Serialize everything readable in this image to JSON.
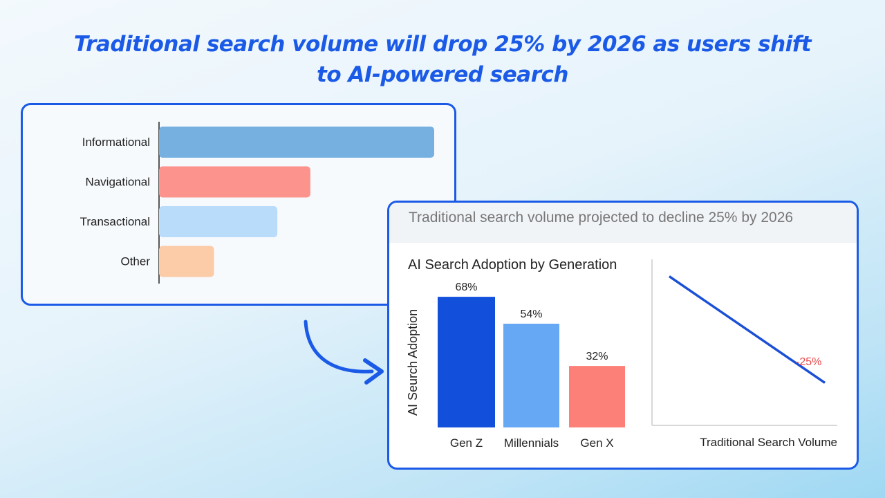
{
  "title": "Traditional search volume will drop 25% by 2026 as users shift to AI-powered search",
  "chart_data": [
    {
      "type": "bar",
      "orientation": "horizontal",
      "categories": [
        "Informational",
        "Navigational",
        "Transactional",
        "Other"
      ],
      "values": [
        100,
        55,
        43,
        20
      ],
      "colors": [
        "#76b0e0",
        "#fc938c",
        "#badcfb",
        "#fccba8"
      ],
      "xlim": [
        0,
        100
      ]
    },
    {
      "type": "bar",
      "title": "AI Search Adoption by Generation",
      "ylabel": "AI Seurch Adoption",
      "categories": [
        "Gen Z",
        "Millennials",
        "Gen X"
      ],
      "values": [
        68,
        54,
        32
      ],
      "data_labels": [
        "68%",
        "54%",
        "32%"
      ],
      "colors": [
        "#1250dc",
        "#66a8f4",
        "#fc7f78"
      ],
      "ylim": [
        0,
        72
      ]
    },
    {
      "type": "line",
      "header": "Traditional search volume projected to decline 25% by 2026",
      "xlabel": "Traditional Search Volume",
      "y": [
        100,
        75
      ],
      "ylim": [
        65,
        104
      ],
      "annotation": "-25%",
      "line_color": "#1a4fd6",
      "annotation_color": "#e8474a"
    }
  ]
}
